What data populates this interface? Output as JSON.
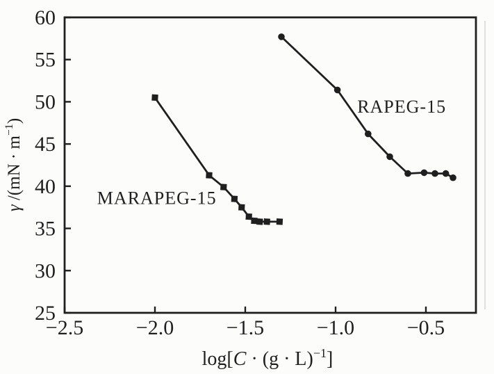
{
  "figure": {
    "background": "#fcfcfa",
    "ink": "#1f1f1f",
    "scan_artifact_color": "#c9c9c4"
  },
  "chart_data": {
    "type": "line",
    "title": "",
    "xlabel": "log[C · (g · L)⁻¹]",
    "ylabel": "γ /(mN · m⁻¹)",
    "xlabel_parts": [
      {
        "t": "log[",
        "s": "n"
      },
      {
        "t": "C",
        "s": "i"
      },
      {
        "t": " · (g · L)",
        "s": "n"
      },
      {
        "t": "−1",
        "s": "sup"
      },
      {
        "t": "]",
        "s": "n"
      }
    ],
    "ylabel_parts": [
      {
        "t": "γ",
        "s": "i"
      },
      {
        "t": " /(mN · m",
        "s": "n"
      },
      {
        "t": "−1",
        "s": "sup"
      },
      {
        "t": ")",
        "s": "n"
      }
    ],
    "xlim": [
      -2.5,
      -0.223
    ],
    "ylim": [
      25,
      60
    ],
    "grid": false,
    "legend_position": "in-plot-annotations",
    "xticks": [
      {
        "v": -2.5,
        "label": "−2.5"
      },
      {
        "v": -2.0,
        "label": "−2.0"
      },
      {
        "v": -1.5,
        "label": "−1.5"
      },
      {
        "v": -1.0,
        "label": "−1.0"
      },
      {
        "v": -0.5,
        "label": "−0.5"
      }
    ],
    "yticks": [
      {
        "v": 25,
        "label": "25"
      },
      {
        "v": 30,
        "label": "30"
      },
      {
        "v": 35,
        "label": "35"
      },
      {
        "v": 40,
        "label": "40"
      },
      {
        "v": 45,
        "label": "45"
      },
      {
        "v": 50,
        "label": "50"
      },
      {
        "v": 55,
        "label": "55"
      },
      {
        "v": 60,
        "label": "60"
      }
    ],
    "series": [
      {
        "name": "MARAPEG-15",
        "marker": "square",
        "color": "#1f1f1f",
        "points": [
          [
            -2.0,
            50.5
          ],
          [
            -1.7,
            41.3
          ],
          [
            -1.62,
            39.9
          ],
          [
            -1.56,
            38.5
          ],
          [
            -1.52,
            37.5
          ],
          [
            -1.48,
            36.4
          ],
          [
            -1.45,
            35.9
          ],
          [
            -1.42,
            35.8
          ],
          [
            -1.38,
            35.8
          ],
          [
            -1.31,
            35.8
          ]
        ]
      },
      {
        "name": "RAPEG-15",
        "marker": "circle",
        "color": "#1f1f1f",
        "points": [
          [
            -1.3,
            57.7
          ],
          [
            -0.99,
            51.4
          ],
          [
            -0.82,
            46.2
          ],
          [
            -0.7,
            43.5
          ],
          [
            -0.6,
            41.5
          ],
          [
            -0.51,
            41.6
          ],
          [
            -0.45,
            41.5
          ],
          [
            -0.39,
            41.5
          ],
          [
            -0.35,
            41.0
          ]
        ]
      }
    ],
    "annotations": [
      {
        "text": "MARAPEG-15",
        "x": -2.32,
        "y": 37.9,
        "anchor": "start"
      },
      {
        "text": "RAPEG-15",
        "x": -0.88,
        "y": 48.7,
        "anchor": "start"
      }
    ]
  }
}
